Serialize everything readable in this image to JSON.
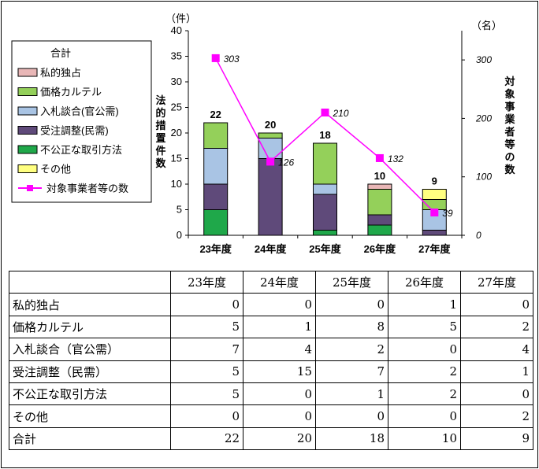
{
  "chart_data": {
    "type": "bar",
    "stacked": true,
    "categories": [
      "23年度",
      "24年度",
      "25年度",
      "26年度",
      "27年度"
    ],
    "series": [
      {
        "name": "不公正な取引方法",
        "values": [
          5,
          0,
          1,
          2,
          0
        ],
        "color": "#1fa84a"
      },
      {
        "name": "受注調整（民需）",
        "values": [
          5,
          15,
          7,
          2,
          1
        ],
        "color": "#5f4a7a"
      },
      {
        "name": "入札談合（官公需）",
        "values": [
          7,
          4,
          2,
          0,
          4
        ],
        "color": "#a9c4e4"
      },
      {
        "name": "価格カルテル",
        "values": [
          5,
          1,
          8,
          5,
          2
        ],
        "color": "#94d05a"
      },
      {
        "name": "私的独占",
        "values": [
          0,
          0,
          0,
          1,
          0
        ],
        "color": "#e9b7b7"
      },
      {
        "name": "その他",
        "values": [
          0,
          0,
          0,
          0,
          2
        ],
        "color": "#ffff80"
      }
    ],
    "totals": [
      22,
      20,
      18,
      10,
      9
    ],
    "line": {
      "name": "対象事業者等の数",
      "values": [
        303,
        126,
        210,
        132,
        39
      ],
      "color": "#ff00ff",
      "labels": [
        "303",
        "126",
        "210",
        "132",
        "39"
      ]
    },
    "y_left": {
      "unit": "（件）",
      "label": "法的措置件数",
      "range": [
        0,
        40
      ],
      "ticks": [
        "0",
        "5",
        "10",
        "15",
        "20",
        "25",
        "30",
        "35",
        "40"
      ]
    },
    "y_right": {
      "unit": "（名）",
      "label": "対象事業者等の数",
      "range": [
        0,
        350
      ],
      "ticks": [
        "0",
        "100",
        "200",
        "300"
      ]
    },
    "legend": {
      "position": "top-left",
      "title": "合計",
      "items": [
        "私的独占",
        "価格カルテル",
        "入札談合(官公需)",
        "受注調整(民需)",
        "不公正な取引方法",
        "その他",
        "対象事業者等の数"
      ]
    }
  },
  "table": {
    "headers": [
      "",
      "23年度",
      "24年度",
      "25年度",
      "26年度",
      "27年度"
    ],
    "rows": [
      {
        "label": "私的独占",
        "values": [
          "0",
          "0",
          "0",
          "1",
          "0"
        ]
      },
      {
        "label": "価格カルテル",
        "values": [
          "5",
          "1",
          "8",
          "5",
          "2"
        ]
      },
      {
        "label": "入札談合（官公需）",
        "values": [
          "7",
          "4",
          "2",
          "0",
          "4"
        ]
      },
      {
        "label": "受注調整（民需）",
        "values": [
          "5",
          "15",
          "7",
          "2",
          "1"
        ]
      },
      {
        "label": "不公正な取引方法",
        "values": [
          "5",
          "0",
          "1",
          "2",
          "0"
        ]
      },
      {
        "label": "その他",
        "values": [
          "0",
          "0",
          "0",
          "0",
          "2"
        ]
      },
      {
        "label": "合計",
        "values": [
          "22",
          "20",
          "18",
          "10",
          "9"
        ]
      }
    ]
  }
}
